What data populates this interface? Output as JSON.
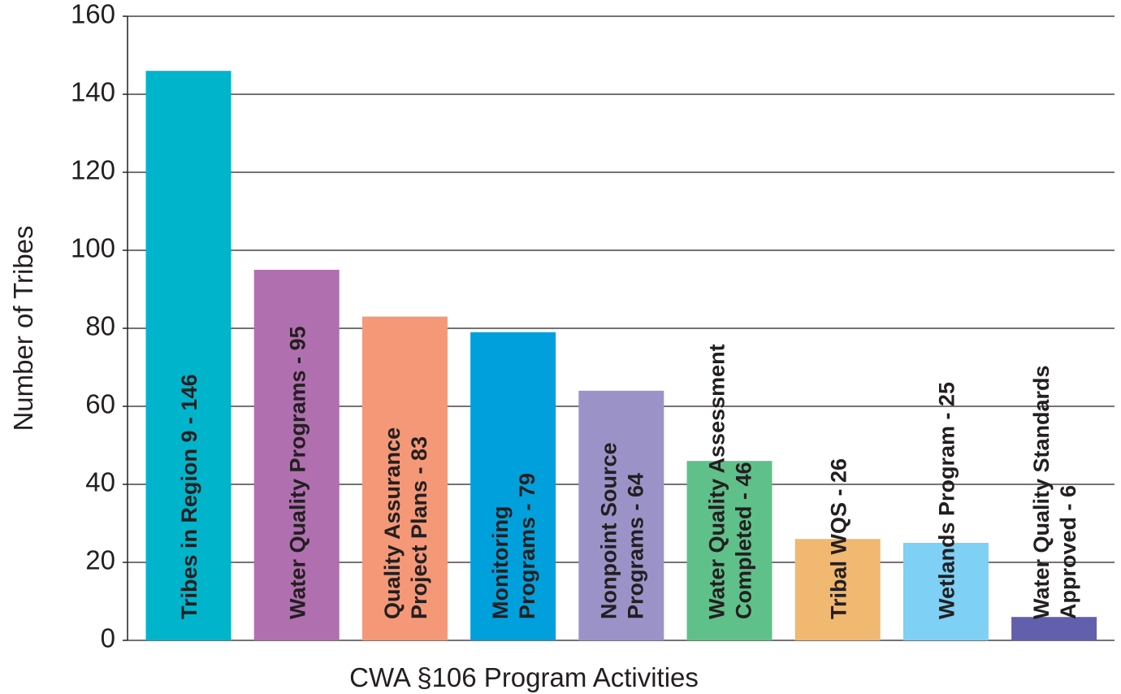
{
  "chart_data": {
    "type": "bar",
    "x_label": "CWA §106 Program Activities",
    "y_label": "Number of Tribes",
    "categories": [
      [
        "Tribes in Region 9 - 146"
      ],
      [
        "Water Quality Programs - 95"
      ],
      [
        "Quality Assurance",
        "Project Plans - 83"
      ],
      [
        "Monitoring",
        "Programs - 79"
      ],
      [
        "Nonpoint Source",
        "Programs - 64"
      ],
      [
        "Water Quality Assessment",
        "Completed - 46"
      ],
      [
        "Tribal WQS - 26"
      ],
      [
        "Wetlands Program - 25"
      ],
      [
        "Water Quality Standards",
        "Approved - 6"
      ]
    ],
    "values": [
      146,
      95,
      83,
      79,
      64,
      46,
      26,
      25,
      6
    ],
    "colors": [
      "#00b4cc",
      "#b070b0",
      "#f49878",
      "#00a0dc",
      "#9b93c8",
      "#60c08a",
      "#f0b870",
      "#7ed0f4",
      "#6260ac"
    ],
    "ylim": [
      0,
      160
    ],
    "yticks": [
      0,
      20,
      40,
      60,
      80,
      100,
      120,
      140,
      160
    ],
    "grid": true
  }
}
